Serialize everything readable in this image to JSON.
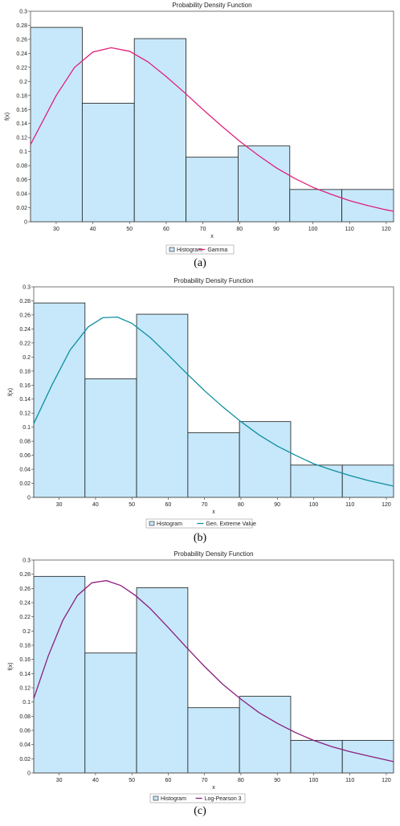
{
  "panels": [
    {
      "caption": "(a)",
      "curve_color": "#e0207a"
    },
    {
      "caption": "(b)",
      "curve_color": "#0e8fa0"
    },
    {
      "caption": "(c)",
      "curve_color": "#8b1e7e"
    }
  ],
  "chart_data": [
    {
      "type": "bar",
      "title": "Probability Density Function",
      "xlabel": "x",
      "ylabel": "f(x)",
      "xlim": [
        23,
        122
      ],
      "ylim": [
        0,
        0.3
      ],
      "x_ticks": [
        30,
        40,
        50,
        60,
        70,
        80,
        90,
        100,
        110,
        120
      ],
      "y_ticks": [
        0,
        0.02,
        0.04,
        0.06,
        0.08,
        0.1,
        0.12,
        0.14,
        0.16,
        0.18,
        0.2,
        0.22,
        0.24,
        0.26,
        0.28,
        0.3
      ],
      "bins": [
        [
          23,
          37.1
        ],
        [
          37.1,
          51.3
        ],
        [
          51.3,
          65.4
        ],
        [
          65.4,
          79.6
        ],
        [
          79.6,
          93.7
        ],
        [
          93.7,
          107.9
        ],
        [
          107.9,
          122
        ]
      ],
      "values": [
        0.277,
        0.169,
        0.261,
        0.092,
        0.108,
        0.046,
        0.046
      ],
      "series": [
        {
          "name": "Histogram",
          "type": "histogram"
        },
        {
          "name": "Gamma",
          "type": "line",
          "x": [
            23,
            30,
            35,
            40,
            45,
            50,
            55,
            60,
            65,
            70,
            75,
            80,
            85,
            90,
            95,
            100,
            105,
            110,
            115,
            120,
            122
          ],
          "y": [
            0.11,
            0.18,
            0.22,
            0.242,
            0.248,
            0.243,
            0.228,
            0.207,
            0.184,
            0.16,
            0.137,
            0.115,
            0.095,
            0.077,
            0.062,
            0.049,
            0.039,
            0.03,
            0.023,
            0.017,
            0.015
          ]
        }
      ],
      "legend": "bottom-center"
    },
    {
      "type": "bar",
      "title": "Probability Density Function",
      "xlabel": "x",
      "ylabel": "f(x)",
      "xlim": [
        23,
        122
      ],
      "ylim": [
        0,
        0.3
      ],
      "x_ticks": [
        30,
        40,
        50,
        60,
        70,
        80,
        90,
        100,
        110,
        120
      ],
      "y_ticks": [
        0,
        0.02,
        0.04,
        0.06,
        0.08,
        0.1,
        0.12,
        0.14,
        0.16,
        0.18,
        0.2,
        0.22,
        0.24,
        0.26,
        0.28,
        0.3
      ],
      "bins": [
        [
          23,
          37.1
        ],
        [
          37.1,
          51.3
        ],
        [
          51.3,
          65.4
        ],
        [
          65.4,
          79.6
        ],
        [
          79.6,
          93.7
        ],
        [
          93.7,
          107.9
        ],
        [
          107.9,
          122
        ]
      ],
      "values": [
        0.277,
        0.169,
        0.261,
        0.092,
        0.108,
        0.046,
        0.046
      ],
      "series": [
        {
          "name": "Histogram",
          "type": "histogram"
        },
        {
          "name": "Gen. Extreme Value",
          "type": "line",
          "x": [
            23,
            28,
            33,
            38,
            42,
            46,
            50,
            55,
            60,
            65,
            70,
            75,
            80,
            85,
            90,
            95,
            100,
            105,
            110,
            115,
            122
          ],
          "y": [
            0.105,
            0.16,
            0.21,
            0.243,
            0.256,
            0.257,
            0.248,
            0.228,
            0.203,
            0.177,
            0.152,
            0.129,
            0.108,
            0.089,
            0.073,
            0.06,
            0.048,
            0.039,
            0.031,
            0.024,
            0.016
          ]
        }
      ],
      "legend": "bottom-center"
    },
    {
      "type": "bar",
      "title": "Probability Density Function",
      "xlabel": "x",
      "ylabel": "f(x)",
      "xlim": [
        23,
        122
      ],
      "ylim": [
        0,
        0.3
      ],
      "x_ticks": [
        30,
        40,
        50,
        60,
        70,
        80,
        90,
        100,
        110,
        120
      ],
      "y_ticks": [
        0,
        0.02,
        0.04,
        0.06,
        0.08,
        0.1,
        0.12,
        0.14,
        0.16,
        0.18,
        0.2,
        0.22,
        0.24,
        0.26,
        0.28,
        0.3
      ],
      "bins": [
        [
          23,
          37.1
        ],
        [
          37.1,
          51.3
        ],
        [
          51.3,
          65.4
        ],
        [
          65.4,
          79.6
        ],
        [
          79.6,
          93.7
        ],
        [
          93.7,
          107.9
        ],
        [
          107.9,
          122
        ]
      ],
      "values": [
        0.277,
        0.169,
        0.261,
        0.092,
        0.108,
        0.046,
        0.046
      ],
      "series": [
        {
          "name": "Histogram",
          "type": "histogram"
        },
        {
          "name": "Log-Pearson 3",
          "type": "line",
          "x": [
            23,
            27,
            31,
            35,
            39,
            43,
            47,
            51,
            55,
            60,
            65,
            70,
            75,
            80,
            85,
            90,
            95,
            100,
            105,
            110,
            115,
            122
          ],
          "y": [
            0.105,
            0.165,
            0.215,
            0.25,
            0.268,
            0.271,
            0.264,
            0.25,
            0.232,
            0.205,
            0.177,
            0.15,
            0.125,
            0.104,
            0.085,
            0.07,
            0.057,
            0.046,
            0.037,
            0.03,
            0.024,
            0.016
          ]
        }
      ],
      "legend": "bottom-center"
    }
  ]
}
